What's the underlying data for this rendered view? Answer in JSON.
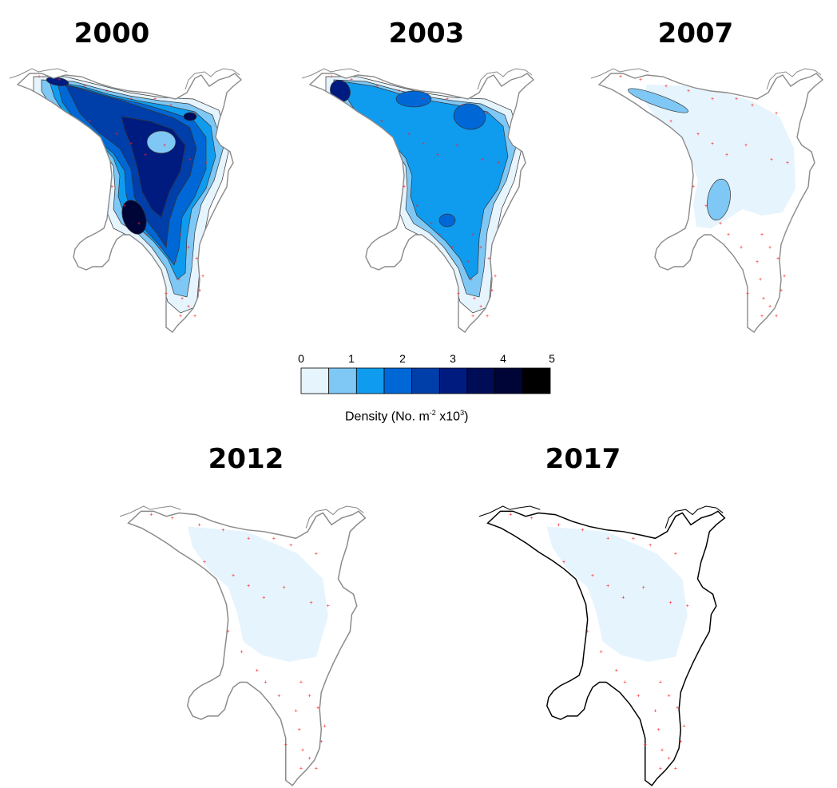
{
  "panels": [
    {
      "year": "2000",
      "max_class": 8
    },
    {
      "year": "2003",
      "max_class": 4
    },
    {
      "year": "2007",
      "max_class": 2
    },
    {
      "year": "2012",
      "max_class": 1
    },
    {
      "year": "2017",
      "max_class": 1
    }
  ],
  "legend": {
    "ticks": [
      "0",
      "1",
      "2",
      "3",
      "4",
      "5"
    ],
    "label_prefix": "Density (No. m",
    "label_sup1": "-2",
    "label_mid": " x10",
    "label_sup2": "3",
    "label_suffix": ")",
    "colors": [
      "#e6f4fd",
      "#7fc8f5",
      "#0f9cef",
      "#0068d6",
      "#003eaa",
      "#001b80",
      "#000c55",
      "#000538",
      "#000000"
    ]
  },
  "colors": {
    "coastline": "#8a8a8a",
    "coastline_dark": "#000000",
    "sample_station": "#ff1a1a"
  }
}
